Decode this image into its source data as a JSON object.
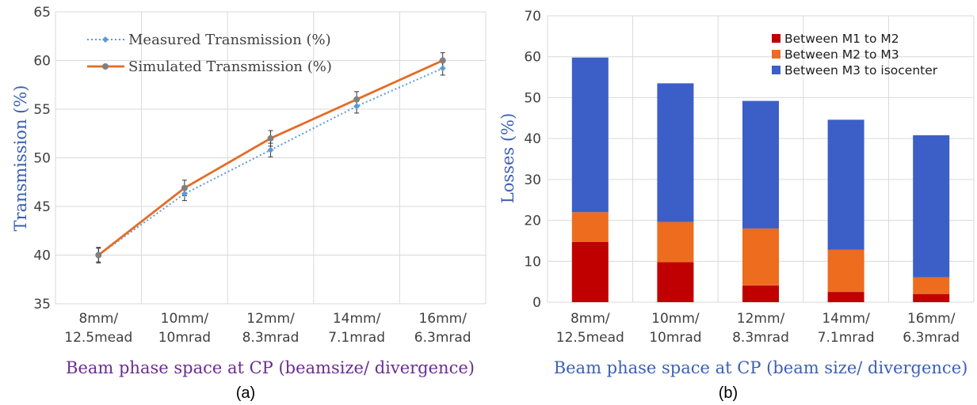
{
  "colors": {
    "measured": "#5b9bd5",
    "simulated": "#e46c24",
    "simulated_marker": "#808080",
    "between_m1_m2": "#c00000",
    "between_m2_m3": "#ed6c1e",
    "between_m3_iso": "#3b5fc6",
    "grid": "#d9d9d9",
    "title_a": "#6a2d91",
    "title_b": "#3c60b4"
  },
  "chart_data": [
    {
      "type": "line",
      "panel_label": "(a)",
      "categories": [
        [
          "8mm/",
          "12.5mead"
        ],
        [
          "10mm/",
          "10mrad"
        ],
        [
          "12mm/",
          "8.3mrad"
        ],
        [
          "14mm/",
          "7.1mrad"
        ],
        [
          "16mm/",
          "6.3mrad"
        ]
      ],
      "xlabel": "Beam phase space at CP (beamsize/ divergence)",
      "ylabel": "Transmission (%)",
      "ylim": [
        35,
        65
      ],
      "yticks": [
        35,
        40,
        45,
        50,
        55,
        60,
        65
      ],
      "grid": true,
      "legend_position": "top-left",
      "series": [
        {
          "name": "Measured Transmission (%)",
          "style": "dotted",
          "marker": "diamond",
          "values": [
            40.0,
            46.3,
            50.8,
            55.3,
            59.2
          ],
          "error": 0.7
        },
        {
          "name": "Simulated Transmission (%)",
          "style": "solid",
          "marker": "circle",
          "values": [
            40.0,
            46.9,
            52.0,
            56.0,
            60.0
          ],
          "error": 0.8
        }
      ]
    },
    {
      "type": "bar",
      "stacked": true,
      "panel_label": "(b)",
      "categories": [
        [
          "8mm/",
          "12.5mead"
        ],
        [
          "10mm/",
          "10mrad"
        ],
        [
          "12mm/",
          "8.3mrad"
        ],
        [
          "14mm/",
          "7.1mrad"
        ],
        [
          "16mm/",
          "6.3mrad"
        ]
      ],
      "xlabel": "Beam phase space at CP (beam size/ divergence)",
      "ylabel": "Losses (%)",
      "ylim": [
        0,
        70
      ],
      "yticks": [
        0,
        10,
        20,
        30,
        40,
        50,
        60,
        70
      ],
      "grid": true,
      "legend_position": "top-right",
      "series": [
        {
          "name": "Between M1 to M2",
          "values": [
            14.7,
            9.8,
            4.1,
            2.5,
            2.0
          ]
        },
        {
          "name": "Between M2 to M3",
          "values": [
            7.3,
            9.8,
            13.9,
            10.3,
            4.1
          ]
        },
        {
          "name": "Between M3 to isocenter",
          "values": [
            37.8,
            33.9,
            31.2,
            31.8,
            34.7
          ]
        }
      ]
    }
  ]
}
